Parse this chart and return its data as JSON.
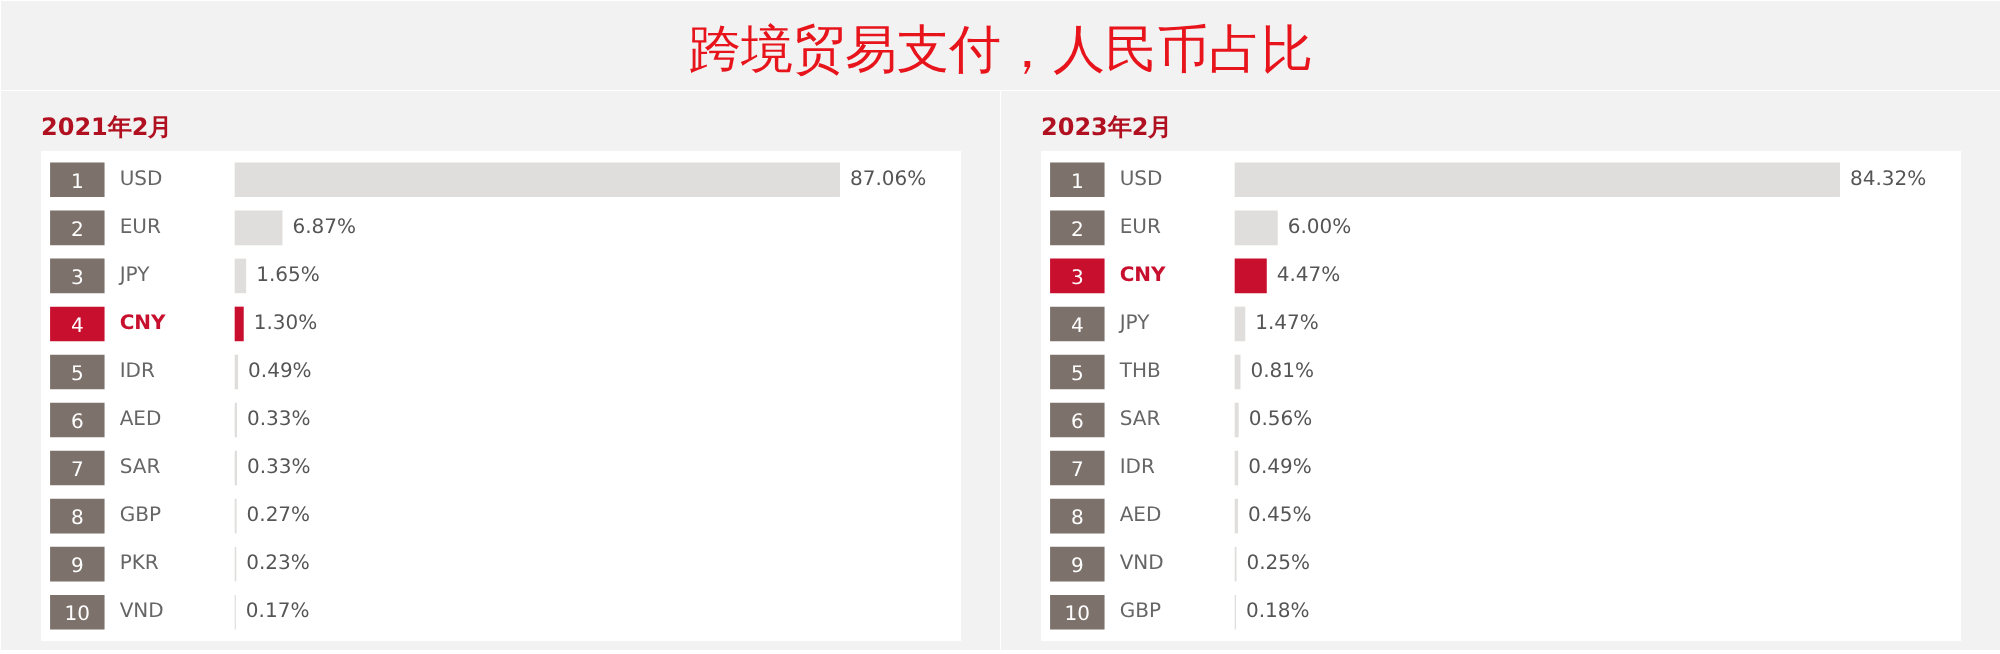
{
  "chart_data": [
    {
      "type": "bar",
      "orientation": "horizontal",
      "title": "跨境贸易支付，人民币占比",
      "subtitle": "2021年2月",
      "categories": [
        "USD",
        "EUR",
        "JPY",
        "CNY",
        "IDR",
        "AED",
        "SAR",
        "GBP",
        "PKR",
        "VND"
      ],
      "values": [
        87.06,
        6.87,
        1.65,
        1.3,
        0.49,
        0.33,
        0.33,
        0.27,
        0.23,
        0.17
      ],
      "colors": [
        "#e0dedc",
        "#e0dedc",
        "#e0dedc",
        "#c8102e",
        "#e0dedc",
        "#e0dedc",
        "#e0dedc",
        "#e0dedc",
        "#e0dedc",
        "#e0dedc"
      ],
      "value_labels": [
        "87.06%",
        "6.87%",
        "1.65%",
        "1.30%",
        "0.49%",
        "0.33%",
        "0.33%",
        "0.27%",
        "0.23%",
        "0.17%"
      ],
      "annotations": [
        "1",
        "2",
        "3",
        "4",
        "5",
        "6",
        "7",
        "8",
        "9",
        "10"
      ]
    },
    {
      "type": "bar",
      "orientation": "horizontal",
      "subtitle": "2023年2月",
      "categories": [
        "USD",
        "EUR",
        "CNY",
        "JPY",
        "THB",
        "SAR",
        "IDR",
        "AED",
        "VND",
        "GBP"
      ],
      "values": [
        84.32,
        6.0,
        4.47,
        1.47,
        0.81,
        0.56,
        0.49,
        0.45,
        0.25,
        0.18
      ],
      "colors": [
        "#e0dedc",
        "#e0dedc",
        "#c8102e",
        "#e0dedc",
        "#e0dedc",
        "#e0dedc",
        "#e0dedc",
        "#e0dedc",
        "#e0dedc",
        "#e0dedc"
      ],
      "value_labels": [
        "84.32%",
        "6.00%",
        "4.47%",
        "1.47%",
        "0.81%",
        "0.56%",
        "0.49%",
        "0.45%",
        "0.25%",
        "0.18%"
      ],
      "annotations": [
        "1",
        "2",
        "3",
        "4",
        "5",
        "6",
        "7",
        "8",
        "9",
        "10"
      ]
    }
  ]
}
